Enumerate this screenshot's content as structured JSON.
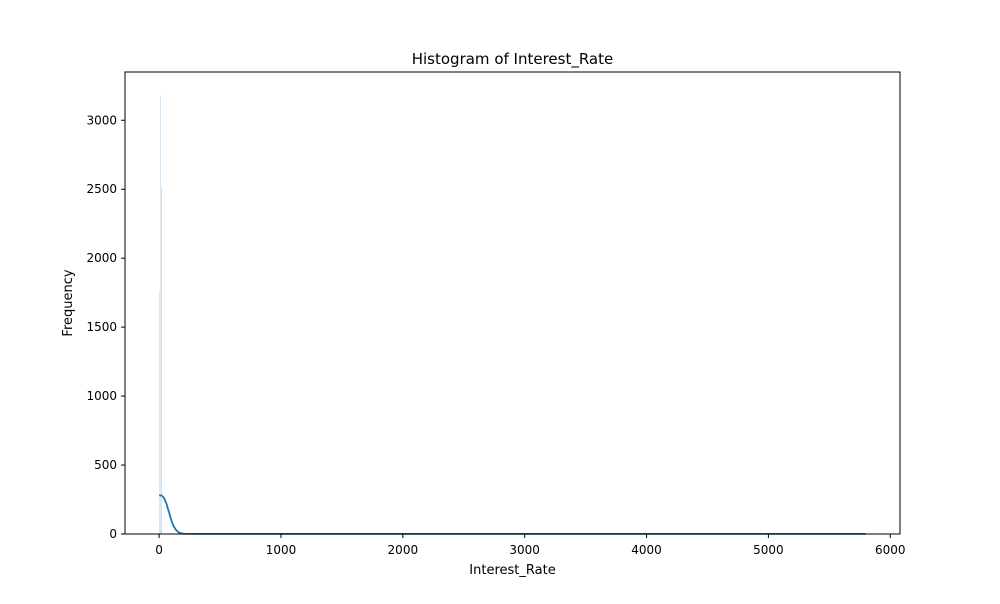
{
  "chart_data": {
    "type": "bar",
    "title": "Histogram of Interest_Rate",
    "xlabel": "Interest_Rate",
    "ylabel": "Frequency",
    "xlim": [
      -280,
      6080
    ],
    "ylim": [
      0,
      3350
    ],
    "xticks": [
      0,
      1000,
      2000,
      3000,
      4000,
      5000,
      6000
    ],
    "yticks": [
      0,
      500,
      1000,
      1500,
      2000,
      2500,
      3000
    ],
    "grid": false,
    "legend": "none",
    "bar_color": "#1f77b4",
    "kde_color": "#1f77b4",
    "bins": [
      {
        "x0": 0,
        "x1": 5,
        "value": 1770
      },
      {
        "x0": 5,
        "x1": 10,
        "value": 110
      },
      {
        "x0": 10,
        "x1": 15,
        "value": 3180
      },
      {
        "x0": 15,
        "x1": 20,
        "value": 2520
      },
      {
        "x0": 20,
        "x1": 25,
        "value": 25
      }
    ],
    "kde": {
      "x": [
        0,
        20,
        40,
        60,
        80,
        100,
        120,
        140,
        160,
        180,
        200,
        300,
        500,
        1000,
        2000,
        3000,
        4000,
        5000,
        5800
      ],
      "y": [
        280,
        280,
        262,
        220,
        160,
        100,
        55,
        28,
        12,
        5,
        2,
        1,
        1,
        1,
        1,
        1,
        1,
        1,
        1
      ]
    }
  }
}
